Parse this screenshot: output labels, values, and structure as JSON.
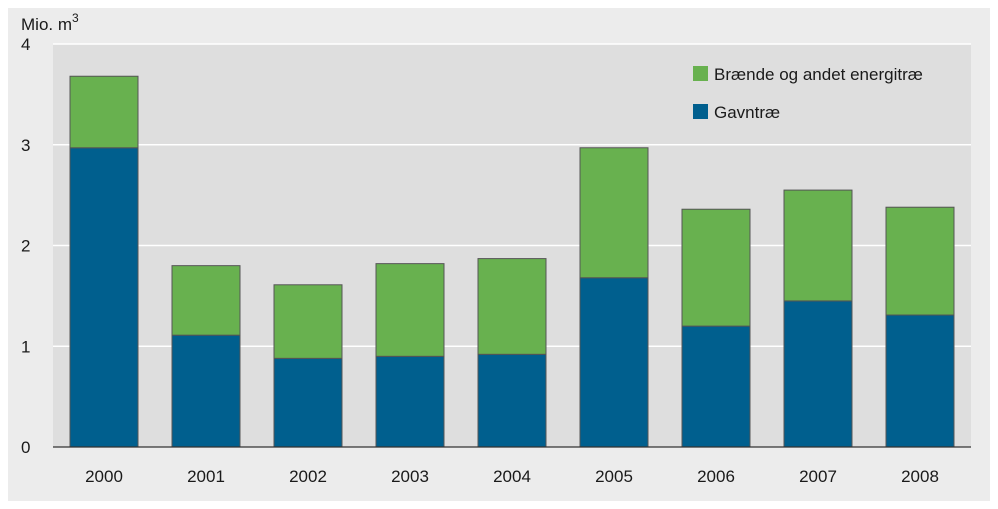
{
  "chart_data": {
    "type": "bar",
    "stacked": true,
    "title": "",
    "unit_label": "Mio. m",
    "unit_superscript": "3",
    "xlabel": "",
    "ylabel": "Mio. m3",
    "ylim": [
      0,
      4
    ],
    "yticks": [
      0,
      1,
      2,
      3,
      4
    ],
    "grid": true,
    "legend_position": "top-right",
    "categories": [
      "2000",
      "2001",
      "2002",
      "2003",
      "2004",
      "2005",
      "2006",
      "2007",
      "2008"
    ],
    "series": [
      {
        "name": "Gavntræ",
        "color": "#005f8e",
        "values": [
          2.97,
          1.11,
          0.88,
          0.9,
          0.92,
          1.68,
          1.2,
          1.45,
          1.31
        ]
      },
      {
        "name": "Brænde og andet energitræ",
        "color": "#68b14f",
        "values": [
          0.71,
          0.69,
          0.73,
          0.92,
          0.95,
          1.29,
          1.16,
          1.1,
          1.07
        ]
      }
    ],
    "legend_order": [
      "Brænde og andet energitræ",
      "Gavntræ"
    ],
    "colors": {
      "plot_background": "#dedede",
      "frame_background": "#ececec",
      "bar_outline": "#555555",
      "gridline": "#ffffff"
    }
  }
}
